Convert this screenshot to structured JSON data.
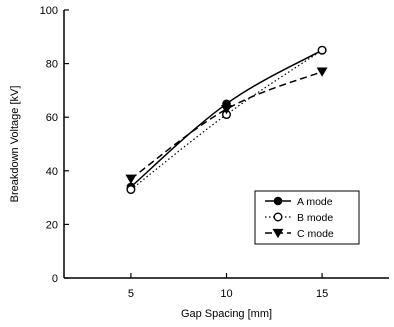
{
  "chart_data": {
    "type": "line",
    "xlabel": "Gap Spacing [mm]",
    "ylabel": "Breakdown Voltage [kV]",
    "xlim": [
      1.5,
      18.5
    ],
    "ylim": [
      0,
      100
    ],
    "x_ticks": [
      5,
      10,
      15
    ],
    "y_ticks": [
      0,
      20,
      40,
      60,
      80,
      100
    ],
    "grid": false,
    "legend_position": "bottom-right",
    "series": [
      {
        "name": "A mode",
        "x": [
          5,
          10,
          15
        ],
        "y": [
          34,
          65,
          85
        ],
        "marker": "filled-circle",
        "line": "solid"
      },
      {
        "name": "B mode",
        "x": [
          5,
          10,
          15
        ],
        "y": [
          33,
          61,
          85
        ],
        "marker": "open-circle",
        "line": "dotted"
      },
      {
        "name": "C mode",
        "x": [
          5,
          10,
          15
        ],
        "y": [
          37,
          63,
          77
        ],
        "marker": "filled-triangle-down",
        "line": "dashed"
      }
    ]
  }
}
